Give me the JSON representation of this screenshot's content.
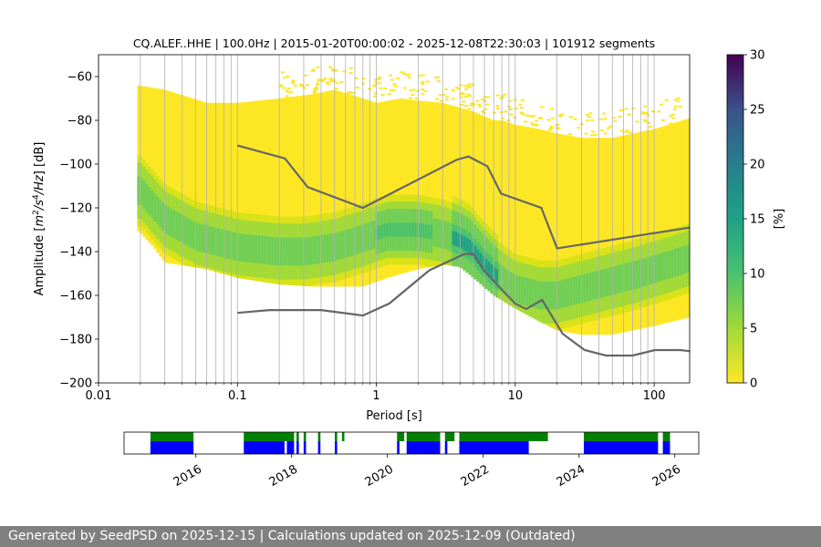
{
  "chart_data": [
    {
      "type": "heatmap",
      "title": "CQ.ALEF..HHE | 100.0Hz | 2015-01-20T00:00:02 - 2025-12-08T22:30:03 | 101912 segments",
      "xlabel": "Period [s]",
      "ylabel_parts": [
        "Amplitude [",
        "m",
        "2",
        "/",
        "s",
        "4",
        "/",
        "Hz",
        "] [dB]"
      ],
      "x_scale": "log",
      "xlim": [
        0.01,
        180
      ],
      "ylim": [
        -200,
        -50
      ],
      "x_ticks": [
        0.01,
        0.1,
        1,
        10,
        100
      ],
      "x_tick_labels": [
        "0.01",
        "0.1",
        "1",
        "10",
        "100"
      ],
      "y_ticks": [
        -200,
        -180,
        -160,
        -140,
        -120,
        -100,
        -80,
        -60
      ],
      "y_tick_labels": [
        "−200",
        "−180",
        "−160",
        "−140",
        "−120",
        "−100",
        "−80",
        "−60"
      ],
      "grid": "vertical lines at log minor ticks",
      "colorbar": {
        "label": "[%]",
        "range": [
          0,
          30
        ],
        "ticks": [
          0,
          5,
          10,
          15,
          20,
          25,
          30
        ],
        "tick_labels": [
          "0",
          "5",
          "10",
          "15",
          "20",
          "25",
          "30"
        ],
        "colormap": "viridis (reversed)"
      },
      "psd_mode_curve": {
        "period": [
          0.02,
          0.03,
          0.05,
          0.1,
          0.2,
          0.3,
          0.5,
          0.8,
          1.2,
          2,
          3,
          4,
          4.8,
          5.5,
          7,
          10,
          15,
          20,
          40,
          80,
          180
        ],
        "db": [
          -112,
          -125,
          -133,
          -138,
          -140,
          -140,
          -138,
          -134,
          -130,
          -130,
          -132,
          -135,
          -138,
          -143,
          -150,
          -157,
          -160,
          -160,
          -155,
          -150,
          -143
        ]
      },
      "psd_upper_envelope": {
        "period": [
          0.019,
          0.03,
          0.06,
          0.1,
          0.2,
          0.35,
          0.5,
          0.8,
          1,
          1.5,
          2,
          3,
          5,
          7,
          8,
          10,
          15,
          20,
          30,
          50,
          100,
          180
        ],
        "db": [
          -64,
          -66,
          -72,
          -72,
          -70,
          -68,
          -66,
          -70,
          -72,
          -70,
          -71,
          -72,
          -76,
          -80,
          -80,
          -82,
          -84,
          -86,
          -88,
          -88,
          -84,
          -79
        ]
      },
      "psd_lower_envelope": {
        "period": [
          0.019,
          0.025,
          0.03,
          0.06,
          0.1,
          0.2,
          0.35,
          0.8,
          1.2,
          2,
          3,
          4,
          5,
          7,
          10,
          15,
          20,
          30,
          50,
          100,
          180
        ],
        "db": [
          -130,
          -138,
          -145,
          -148,
          -152,
          -155,
          -156,
          -156,
          -152,
          -148,
          -146,
          -147,
          -152,
          -160,
          -166,
          -172,
          -176,
          -178,
          -178,
          -174,
          -170
        ]
      },
      "nhnm": {
        "period": [
          0.1,
          0.22,
          0.32,
          0.8,
          3.8,
          4.6,
          6.3,
          7.9,
          15.4,
          20,
          180
        ],
        "db": [
          -91.5,
          -97.4,
          -110.5,
          -120,
          -98,
          -96.5,
          -101,
          -113.5,
          -120,
          -138.5,
          -129
        ]
      },
      "nlnm": {
        "period": [
          0.1,
          0.17,
          0.4,
          0.8,
          1.24,
          2.4,
          4.3,
          5,
          6,
          10,
          12,
          15.6,
          21.9,
          31.6,
          45,
          70,
          101,
          154,
          180
        ],
        "db": [
          -168,
          -166.7,
          -166.7,
          -169.2,
          -163.7,
          -148.6,
          -141.1,
          -141.1,
          -149,
          -163.8,
          -166.2,
          -162.1,
          -177.5,
          -185,
          -187.5,
          -187.5,
          -185,
          -185,
          -185.5
        ]
      }
    },
    {
      "type": "bar",
      "title": "",
      "x_tick_labels": [
        "2016",
        "2018",
        "2020",
        "2022",
        "2024",
        "2026"
      ],
      "x_ticks_year": [
        2016,
        2018,
        2020,
        2022,
        2024,
        2026
      ],
      "xlim": [
        2014.5,
        2026.5
      ],
      "colors": {
        "top": "#008000",
        "bottom": "#0000ff"
      },
      "top_segments": [
        [
          2015.05,
          2015.95
        ],
        [
          2017.0,
          2018.05
        ],
        [
          2018.1,
          2018.15
        ],
        [
          2018.25,
          2018.3
        ],
        [
          2018.55,
          2018.6
        ],
        [
          2018.9,
          2018.95
        ],
        [
          2019.05,
          2019.1
        ],
        [
          2020.2,
          2020.35
        ],
        [
          2020.4,
          2021.1
        ],
        [
          2021.2,
          2021.4
        ],
        [
          2021.5,
          2023.35
        ],
        [
          2024.1,
          2025.65
        ],
        [
          2025.75,
          2025.9
        ]
      ],
      "bottom_segments": [
        [
          2015.05,
          2015.95
        ],
        [
          2017.0,
          2017.85
        ],
        [
          2017.9,
          2018.05
        ],
        [
          2018.1,
          2018.15
        ],
        [
          2018.25,
          2018.3
        ],
        [
          2018.55,
          2018.6
        ],
        [
          2018.9,
          2018.95
        ],
        [
          2020.2,
          2020.25
        ],
        [
          2020.4,
          2021.1
        ],
        [
          2021.2,
          2021.25
        ],
        [
          2021.5,
          2022.95
        ],
        [
          2024.1,
          2025.65
        ],
        [
          2025.75,
          2025.9
        ]
      ]
    }
  ],
  "footer": {
    "text": "Generated by SeedPSD on 2025-12-15 | Calculations updated on 2025-12-09 (Outdated)"
  }
}
